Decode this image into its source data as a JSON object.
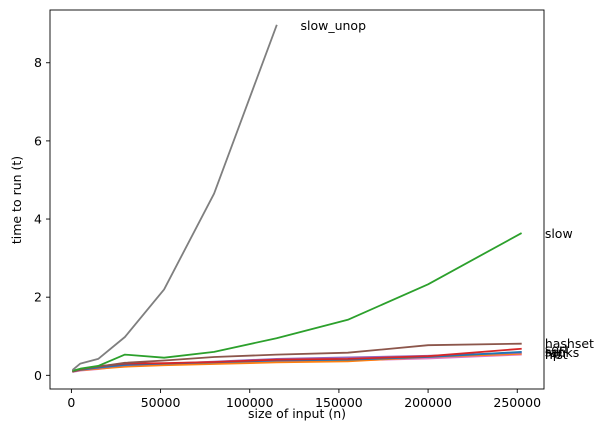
{
  "chart_data": {
    "type": "line",
    "title": "",
    "xlabel": "size of input (n)",
    "ylabel": "time to run (t)",
    "xlim": [
      -12000,
      265000
    ],
    "ylim": [
      -0.35,
      9.35
    ],
    "xticks": [
      0,
      50000,
      100000,
      150000,
      200000,
      250000
    ],
    "xtick_labels": [
      "0",
      "50000",
      "100000",
      "150000",
      "200000",
      "250000"
    ],
    "yticks": [
      0,
      2,
      4,
      6,
      8
    ],
    "ytick_labels": [
      "0",
      "2",
      "4",
      "6",
      "8"
    ],
    "grid": false,
    "legend": "end-of-line labels",
    "series": [
      {
        "name": "slow_unop",
        "color": "#7f7f7f",
        "x": [
          1000,
          5000,
          15000,
          30000,
          52000,
          80000,
          115000
        ],
        "y": [
          0.15,
          0.3,
          0.42,
          0.98,
          2.2,
          4.65,
          8.95
        ]
      },
      {
        "name": "slow",
        "color": "#2ca02c",
        "x": [
          1000,
          5000,
          15000,
          30000,
          52000,
          80000,
          115000,
          155000,
          200000,
          252000
        ],
        "y": [
          0.12,
          0.17,
          0.24,
          0.53,
          0.45,
          0.6,
          0.95,
          1.42,
          2.33,
          3.63
        ]
      },
      {
        "name": "hashset",
        "color": "#8c564b",
        "x": [
          1000,
          5000,
          15000,
          30000,
          52000,
          80000,
          115000,
          155000,
          200000,
          252000
        ],
        "y": [
          0.1,
          0.16,
          0.22,
          0.32,
          0.38,
          0.47,
          0.53,
          0.58,
          0.77,
          0.81
        ]
      },
      {
        "name": "sort",
        "color": "#d62728",
        "x": [
          1000,
          5000,
          15000,
          30000,
          52000,
          80000,
          115000,
          155000,
          200000,
          252000
        ],
        "y": [
          0.1,
          0.15,
          0.23,
          0.3,
          0.31,
          0.34,
          0.4,
          0.42,
          0.49,
          0.68
        ]
      },
      {
        "name": "set",
        "color": "#1f77b4",
        "x": [
          1000,
          5000,
          15000,
          30000,
          52000,
          80000,
          115000,
          155000,
          200000,
          252000
        ],
        "y": [
          0.1,
          0.14,
          0.2,
          0.27,
          0.3,
          0.33,
          0.38,
          0.4,
          0.47,
          0.6
        ]
      },
      {
        "name": "ranks",
        "color": "#9467bd",
        "x": [
          1000,
          5000,
          15000,
          30000,
          52000,
          80000,
          115000,
          155000,
          200000,
          252000
        ],
        "y": [
          0.1,
          0.14,
          0.19,
          0.26,
          0.3,
          0.35,
          0.42,
          0.46,
          0.5,
          0.58
        ]
      },
      {
        "name": "np",
        "color": "#ff7f0e",
        "x": [
          1000,
          5000,
          15000,
          30000,
          52000,
          80000,
          115000,
          155000,
          200000,
          252000
        ],
        "y": [
          0.1,
          0.13,
          0.17,
          0.22,
          0.26,
          0.29,
          0.33,
          0.36,
          0.47,
          0.55
        ]
      },
      {
        "name": "hist",
        "color": "#e377c2",
        "x": [
          1000,
          5000,
          15000,
          30000,
          52000,
          80000,
          115000,
          155000,
          200000,
          252000
        ],
        "y": [
          0.09,
          0.12,
          0.16,
          0.24,
          0.28,
          0.31,
          0.36,
          0.38,
          0.43,
          0.53
        ]
      }
    ]
  }
}
